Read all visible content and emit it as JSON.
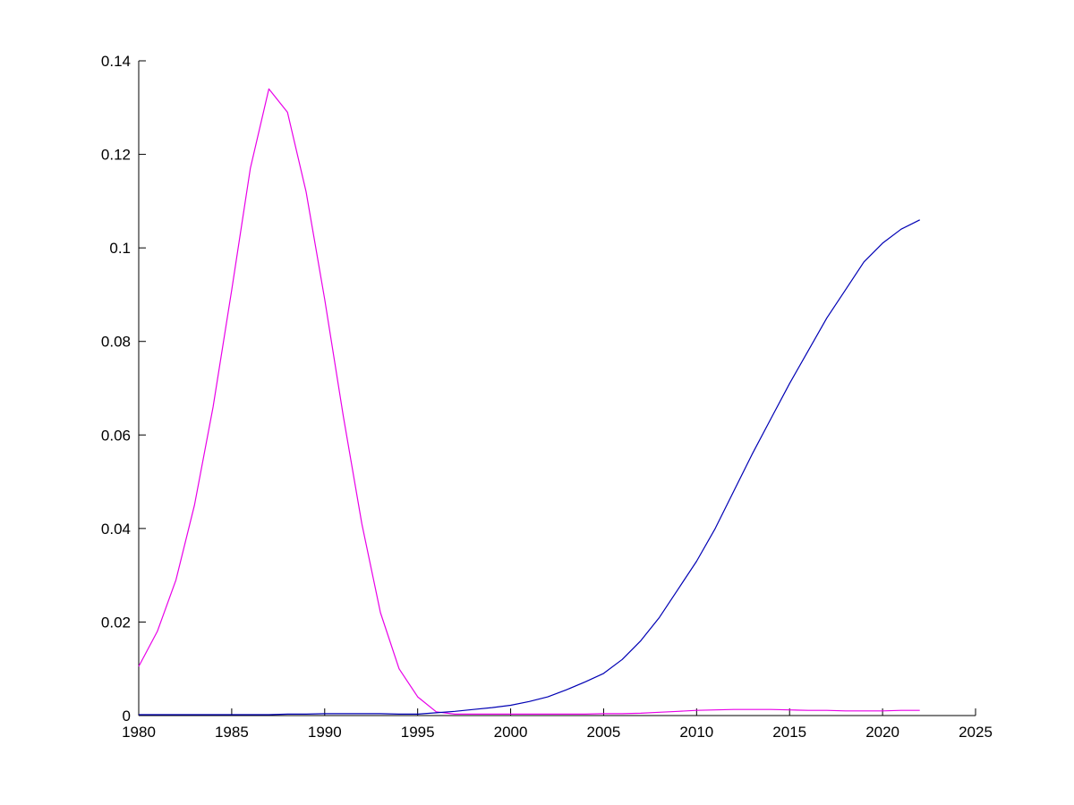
{
  "figure": {
    "background": "#ffffff"
  },
  "chart_data": {
    "type": "line",
    "title": "",
    "xlabel": "",
    "ylabel": "",
    "grid": false,
    "legend_position": "none",
    "axis_color": "#000000",
    "xlim": [
      1980,
      2025
    ],
    "ylim": [
      0,
      0.14
    ],
    "xticks": [
      1980,
      1985,
      1990,
      1995,
      2000,
      2005,
      2010,
      2015,
      2020,
      2025
    ],
    "xtick_labels": [
      "1980",
      "1985",
      "1990",
      "1995",
      "2000",
      "2005",
      "2010",
      "2015",
      "2020",
      "2025"
    ],
    "yticks": [
      0,
      0.02,
      0.04,
      0.06,
      0.08,
      0.1,
      0.12,
      0.14
    ],
    "ytick_labels": [
      "0",
      "0.02",
      "0.04",
      "0.06",
      "0.08",
      "0.1",
      "0.12",
      "0.14"
    ],
    "x": [
      1980,
      1981,
      1982,
      1983,
      1984,
      1985,
      1986,
      1987,
      1988,
      1989,
      1990,
      1991,
      1992,
      1993,
      1994,
      1995,
      1996,
      1997,
      1998,
      1999,
      2000,
      2001,
      2002,
      2003,
      2004,
      2005,
      2006,
      2007,
      2008,
      2009,
      2010,
      2011,
      2012,
      2013,
      2014,
      2015,
      2016,
      2017,
      2018,
      2019,
      2020,
      2021,
      2022
    ],
    "series": [
      {
        "name": "magenta-bell-curve",
        "color": "#e800e8",
        "values": [
          0.0105,
          0.018,
          0.029,
          0.045,
          0.066,
          0.091,
          0.117,
          0.134,
          0.129,
          0.112,
          0.089,
          0.064,
          0.041,
          0.022,
          0.01,
          0.004,
          0.0008,
          0.0003,
          0.0003,
          0.0003,
          0.0003,
          0.0003,
          0.0003,
          0.0003,
          0.0003,
          0.0004,
          0.0004,
          0.0005,
          0.0007,
          0.0009,
          0.0011,
          0.0012,
          0.0013,
          0.0013,
          0.0013,
          0.0012,
          0.0011,
          0.0011,
          0.001,
          0.001,
          0.001,
          0.0011,
          0.0011
        ]
      },
      {
        "name": "blue-rising-curve",
        "color": "#0000b4",
        "values": [
          0.0002,
          0.0002,
          0.0002,
          0.0002,
          0.0002,
          0.0002,
          0.0002,
          0.0002,
          0.0003,
          0.0003,
          0.0004,
          0.0004,
          0.0004,
          0.0004,
          0.0003,
          0.0003,
          0.0006,
          0.0009,
          0.0013,
          0.0017,
          0.0022,
          0.003,
          0.004,
          0.0055,
          0.0072,
          0.009,
          0.012,
          0.016,
          0.021,
          0.027,
          0.033,
          0.04,
          0.048,
          0.056,
          0.0635,
          0.071,
          0.078,
          0.085,
          0.091,
          0.097,
          0.101,
          0.104,
          0.106
        ]
      }
    ]
  }
}
